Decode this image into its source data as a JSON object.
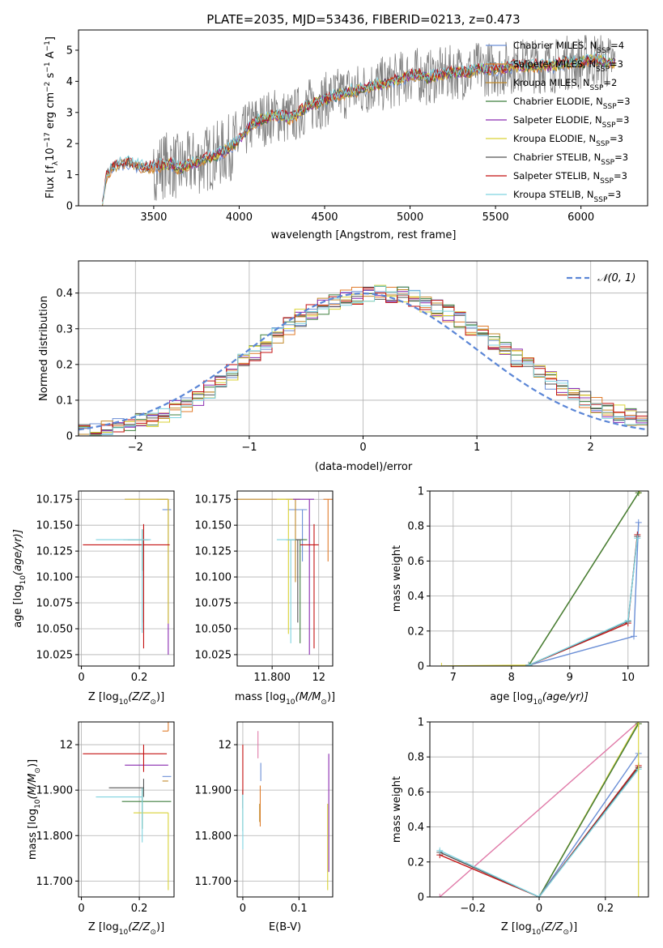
{
  "figure": {
    "title": "PLATE=2035, MJD=53436, FIBERID=0213, z=0.473"
  },
  "colors": {
    "Chabrier MILES": "#6b8fd6",
    "Salpeter MILES": "#e07b2a",
    "Kroupa MILES": "#c28a2a",
    "Chabrier ELODIE": "#3f7f3f",
    "Salpeter ELODIE": "#8a2bb0",
    "Kroupa ELODIE": "#d9d236",
    "Chabrier STELIB": "#555555",
    "Salpeter STELIB": "#c41212",
    "Kroupa STELIB": "#7fd3e0",
    "data": "#808080",
    "gaussian": "#5b86d6",
    "pink": "#e07aa8"
  },
  "chart_data": [
    {
      "id": "spectrum",
      "type": "line",
      "xlabel": "wavelength [Angstrom, rest frame]",
      "ylabel_main": "Flux [f",
      "ylabel_sub": "λ",
      "ylabel_rest": "10",
      "ylabel_exp": "−17",
      "ylabel_unit": " erg cm",
      "ylabel_exp2": "−2",
      "ylabel_s": " s",
      "ylabel_exp3": "−1",
      "ylabel_A": " A",
      "ylabel_exp4": "−1",
      "ylabel_end": "]",
      "xlim": [
        3060,
        6390
      ],
      "ylim": [
        0,
        5.65
      ],
      "xticks": [
        3500,
        4000,
        4500,
        5000,
        5500,
        6000
      ],
      "yticks": [
        0,
        1,
        2,
        3,
        4,
        5
      ],
      "legend_position": "top-right",
      "legend": [
        {
          "name": "Chabrier MILES, N",
          "sub": "SSP",
          "val": "=4"
        },
        {
          "name": "Salpeter MILES, N",
          "sub": "SSP",
          "val": "=3"
        },
        {
          "name": "Kroupa MILES, N",
          "sub": "SSP",
          "val": "=2"
        },
        {
          "name": "Chabrier ELODIE, N",
          "sub": "SSP",
          "val": "=3"
        },
        {
          "name": "Salpeter ELODIE, N",
          "sub": "SSP",
          "val": "=3"
        },
        {
          "name": "Kroupa ELODIE, N",
          "sub": "SSP",
          "val": "=3"
        },
        {
          "name": "Chabrier STELIB, N",
          "sub": "SSP",
          "val": "=3"
        },
        {
          "name": "Salpeter STELIB, N",
          "sub": "SSP",
          "val": "=3"
        },
        {
          "name": "Kroupa STELIB, N",
          "sub": "SSP",
          "val": "=3"
        }
      ],
      "continuum": [
        [
          3200,
          0.0
        ],
        [
          3220,
          0.9
        ],
        [
          3250,
          1.2
        ],
        [
          3300,
          1.35
        ],
        [
          3350,
          1.4
        ],
        [
          3400,
          1.3
        ],
        [
          3450,
          1.25
        ],
        [
          3500,
          1.25
        ],
        [
          3550,
          1.3
        ],
        [
          3600,
          1.35
        ],
        [
          3650,
          1.2
        ],
        [
          3700,
          1.3
        ],
        [
          3750,
          1.4
        ],
        [
          3800,
          1.5
        ],
        [
          3850,
          1.6
        ],
        [
          3900,
          1.7
        ],
        [
          3950,
          1.9
        ],
        [
          4000,
          2.1
        ],
        [
          4050,
          2.5
        ],
        [
          4100,
          2.7
        ],
        [
          4150,
          2.8
        ],
        [
          4200,
          2.9
        ],
        [
          4250,
          2.9
        ],
        [
          4300,
          2.8
        ],
        [
          4350,
          3.0
        ],
        [
          4400,
          3.2
        ],
        [
          4450,
          3.3
        ],
        [
          4500,
          3.4
        ],
        [
          4550,
          3.5
        ],
        [
          4600,
          3.6
        ],
        [
          4650,
          3.7
        ],
        [
          4700,
          3.7
        ],
        [
          4750,
          3.8
        ],
        [
          4800,
          3.9
        ],
        [
          4850,
          3.9
        ],
        [
          4900,
          4.0
        ],
        [
          4950,
          4.1
        ],
        [
          5000,
          4.2
        ],
        [
          5050,
          4.2
        ],
        [
          5100,
          4.1
        ],
        [
          5150,
          4.2
        ],
        [
          5200,
          4.2
        ],
        [
          5250,
          4.3
        ],
        [
          5300,
          4.3
        ],
        [
          5350,
          4.3
        ],
        [
          5400,
          4.4
        ],
        [
          5450,
          4.4
        ],
        [
          5500,
          4.4
        ],
        [
          5550,
          4.4
        ],
        [
          5600,
          4.5
        ],
        [
          5650,
          4.5
        ],
        [
          5700,
          4.5
        ],
        [
          5750,
          4.5
        ],
        [
          5800,
          4.5
        ],
        [
          5850,
          4.5
        ],
        [
          5900,
          4.6
        ],
        [
          5950,
          4.6
        ],
        [
          6000,
          4.6
        ],
        [
          6050,
          4.7
        ],
        [
          6100,
          4.7
        ],
        [
          6150,
          4.6
        ],
        [
          6200,
          4.6
        ]
      ]
    },
    {
      "id": "residuals",
      "type": "line",
      "xlabel": "(data-model)/error",
      "ylabel": "Normed distribution",
      "xlim": [
        -2.5,
        2.5
      ],
      "ylim": [
        0,
        0.49
      ],
      "xticks": [
        -2,
        -1,
        0,
        1,
        2
      ],
      "yticks": [
        0.0,
        0.1,
        0.2,
        0.3,
        0.4
      ],
      "grid": true,
      "legend_position": "top-right",
      "legend": "𝒩(0, 1)",
      "bin_width": 0.1,
      "bins_x0": -2.5,
      "hist": [
        0.015,
        0.02,
        0.028,
        0.03,
        0.032,
        0.04,
        0.05,
        0.062,
        0.075,
        0.09,
        0.11,
        0.13,
        0.155,
        0.18,
        0.205,
        0.232,
        0.258,
        0.283,
        0.307,
        0.33,
        0.348,
        0.363,
        0.375,
        0.385,
        0.392,
        0.398,
        0.4,
        0.398,
        0.392,
        0.383,
        0.372,
        0.358,
        0.342,
        0.323,
        0.303,
        0.283,
        0.262,
        0.24,
        0.218,
        0.196,
        0.175,
        0.155,
        0.136,
        0.118,
        0.102,
        0.088,
        0.074,
        0.062,
        0.052,
        0.043
      ]
    },
    {
      "id": "z-age",
      "type": "scatter",
      "xlabel": "Z [log",
      "xlabel_sub": "10",
      "xlabel_rest": "(Z/Z",
      "xlabel_sun": "⊙",
      "xlabel_end": ")]",
      "ylabel": "age  [log",
      "ylabel_sub": "10",
      "ylabel_rest": "(age/yr)]",
      "xlim": [
        -0.01,
        0.32
      ],
      "ylim": [
        10.014,
        10.183
      ],
      "xticks": [
        0.0,
        0.2
      ],
      "yticks": [
        10.025,
        10.05,
        10.075,
        10.1,
        10.125,
        10.15,
        10.175
      ],
      "grid": true
    },
    {
      "id": "mass-age",
      "type": "scatter",
      "xlabel": "mass [log",
      "xlabel_sub": "10",
      "xlabel_rest": "(M/M",
      "xlabel_sun": "⊙",
      "xlabel_end": ")]",
      "xlim": [
        11.65,
        12.06
      ],
      "ylim": [
        10.014,
        10.183
      ],
      "xticks": [
        11.8,
        12.0
      ],
      "yticks": [
        10.025,
        10.05,
        10.075,
        10.1,
        10.125,
        10.15,
        10.175
      ],
      "grid": true
    },
    {
      "id": "age-weight",
      "type": "line",
      "xlabel": "age  [log",
      "xlabel_sub": "10",
      "xlabel_rest": "(age/yr)]",
      "ylabel": "mass weight",
      "xlim": [
        6.6,
        10.35
      ],
      "ylim": [
        0,
        1.0
      ],
      "xticks": [
        7,
        8,
        9,
        10
      ],
      "yticks": [
        0.0,
        0.2,
        0.4,
        0.6,
        0.8,
        1.0
      ],
      "grid": true
    },
    {
      "id": "z-mass",
      "type": "scatter",
      "xlabel": "Z [log",
      "xlabel_sub": "10",
      "xlabel_rest": "(Z/Z",
      "xlabel_sun": "⊙",
      "xlabel_end": ")]",
      "ylabel": "mass [log",
      "ylabel_sub": "10",
      "ylabel_rest": "(M/M",
      "ylabel_sun": "⊙",
      "ylabel_end": ")]",
      "xlim": [
        -0.01,
        0.32
      ],
      "ylim": [
        11.665,
        12.05
      ],
      "xticks": [
        0.0,
        0.2
      ],
      "yticks": [
        11.7,
        11.8,
        11.9,
        12.0
      ],
      "grid": true
    },
    {
      "id": "ebv-mass",
      "type": "scatter",
      "xlabel": "E(B-V)",
      "xlim": [
        -0.01,
        0.16
      ],
      "ylim": [
        11.665,
        12.05
      ],
      "xticks": [
        0.0,
        0.1
      ],
      "yticks": [
        11.7,
        11.8,
        11.9,
        12.0
      ],
      "grid": true
    },
    {
      "id": "z-weight",
      "type": "line",
      "xlabel": "Z [log",
      "xlabel_sub": "10",
      "xlabel_rest": "(Z/Z",
      "xlabel_sun": "⊙",
      "xlabel_end": ")]",
      "ylabel": "mass weight",
      "xlim": [
        -0.33,
        0.33
      ],
      "ylim": [
        0,
        1.0
      ],
      "xticks": [
        -0.2,
        0.0,
        0.2
      ],
      "yticks": [
        0.0,
        0.2,
        0.4,
        0.6,
        0.8,
        1.0
      ],
      "grid": true
    }
  ]
}
